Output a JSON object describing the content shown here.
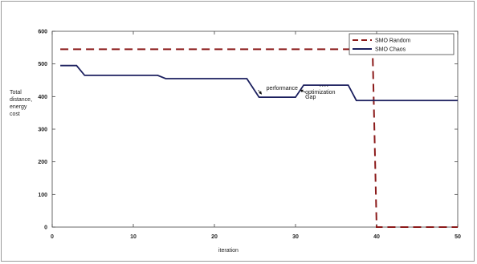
{
  "chart_data": {
    "type": "line",
    "xlabel": "iteration",
    "ylabel": "Total distance, energy cost",
    "ylabel_lines": [
      "Total",
      "distance,",
      "energy",
      "cost"
    ],
    "xlim": [
      0,
      50
    ],
    "ylim": [
      0,
      600
    ],
    "xticks": [
      0,
      10,
      20,
      30,
      40,
      50
    ],
    "yticks": [
      0,
      100,
      200,
      300,
      400,
      500,
      600
    ],
    "grid": false,
    "legend_position": "top-right",
    "series": [
      {
        "name": "SMO Random",
        "color": "#8b1a1a",
        "style": "dashed",
        "x": [
          1,
          38,
          39.5,
          40,
          50
        ],
        "y": [
          545,
          545,
          545,
          0,
          0
        ]
      },
      {
        "name": "SMO Chaos",
        "color": "#1b1f5e",
        "style": "solid",
        "x": [
          1,
          3,
          4,
          13,
          14,
          24,
          25.5,
          30,
          31,
          36.5,
          37.5,
          50
        ],
        "y": [
          495,
          495,
          465,
          465,
          455,
          455,
          398,
          398,
          435,
          435,
          388,
          388
        ]
      }
    ],
    "annotations": [
      {
        "text": "performance",
        "x": 26.4,
        "y": 420
      },
      {
        "text": "optimization",
        "x": 31.2,
        "y": 408
      },
      {
        "text": "Gap",
        "x": 31.2,
        "y": 393
      }
    ]
  }
}
